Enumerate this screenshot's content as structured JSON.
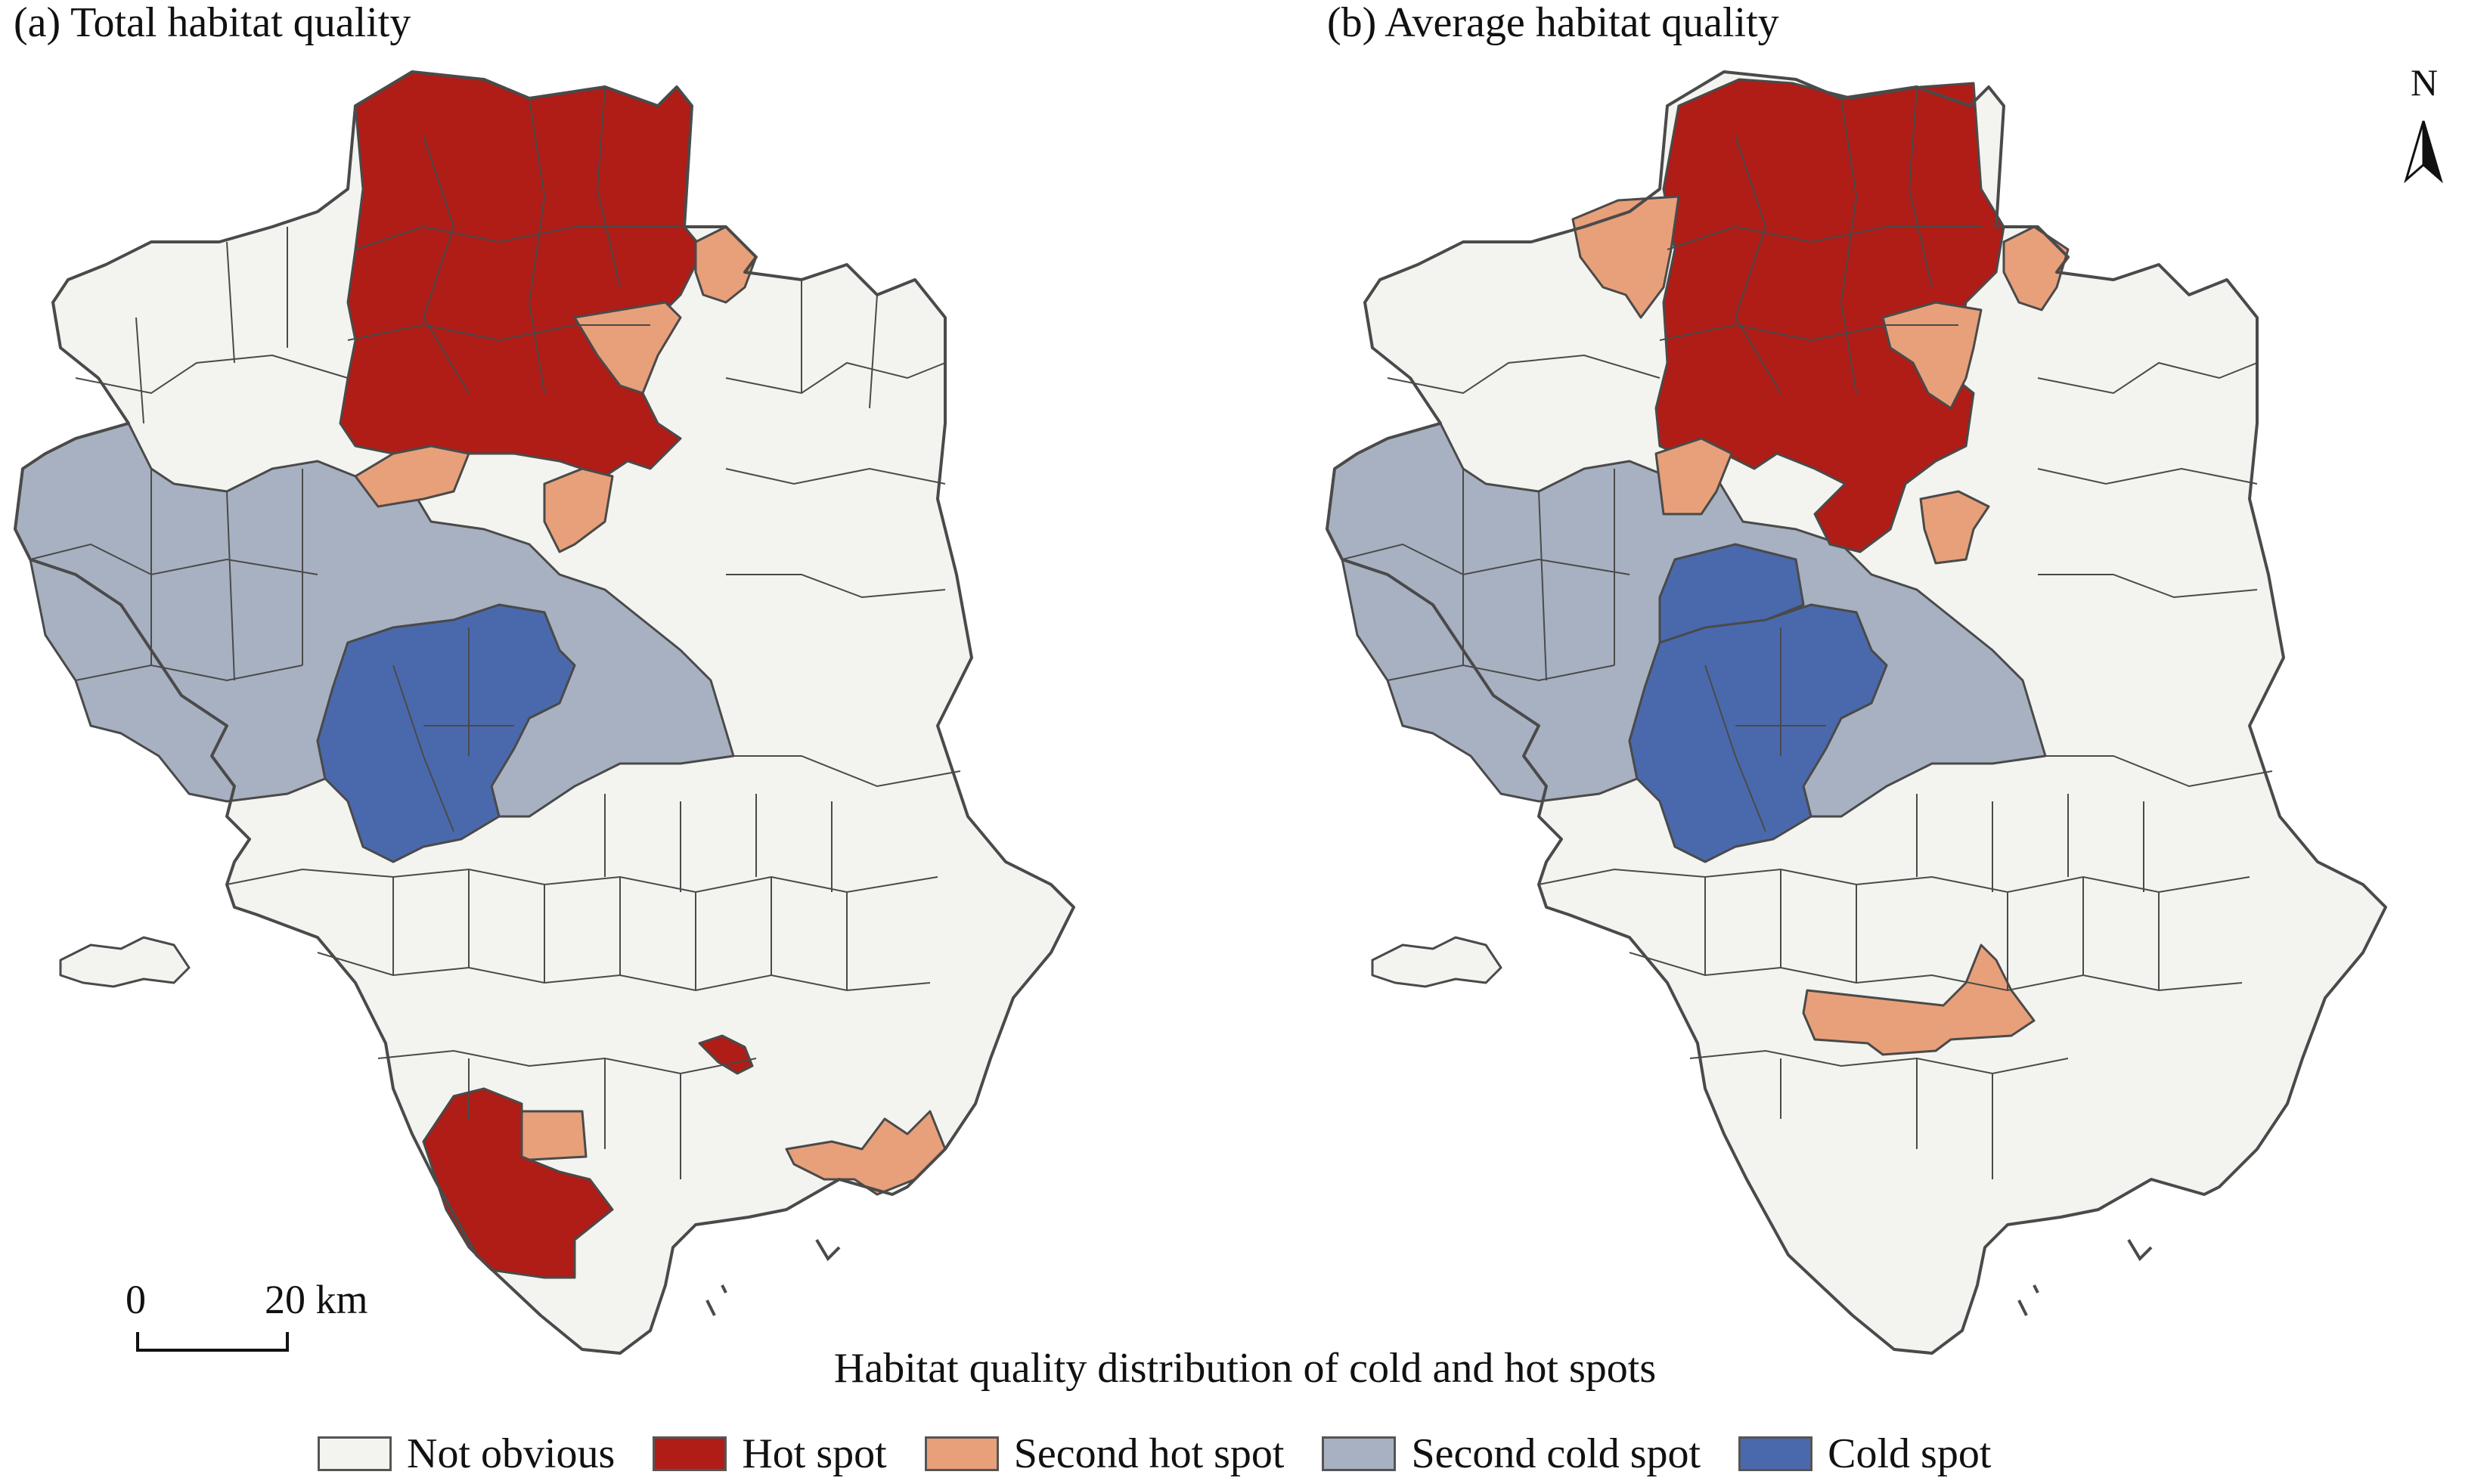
{
  "panels": [
    {
      "id": "a",
      "title": "(a) Total habitat quality"
    },
    {
      "id": "b",
      "title": "(b) Average habitat quality"
    }
  ],
  "north_arrow": {
    "label": "N",
    "icon": "north-arrow-icon"
  },
  "scale_bar": {
    "start": "0",
    "end": "20 km"
  },
  "legend": {
    "title": "Habitat quality distribution of cold and hot spots",
    "items": [
      {
        "label": "Not obvious",
        "color": "#f3f4ef"
      },
      {
        "label": "Hot spot",
        "color": "#b01c16"
      },
      {
        "label": "Second hot spot",
        "color": "#e8a07a"
      },
      {
        "label": "Second cold spot",
        "color": "#a8b1c1"
      },
      {
        "label": "Cold spot",
        "color": "#4a69ad"
      }
    ]
  }
}
